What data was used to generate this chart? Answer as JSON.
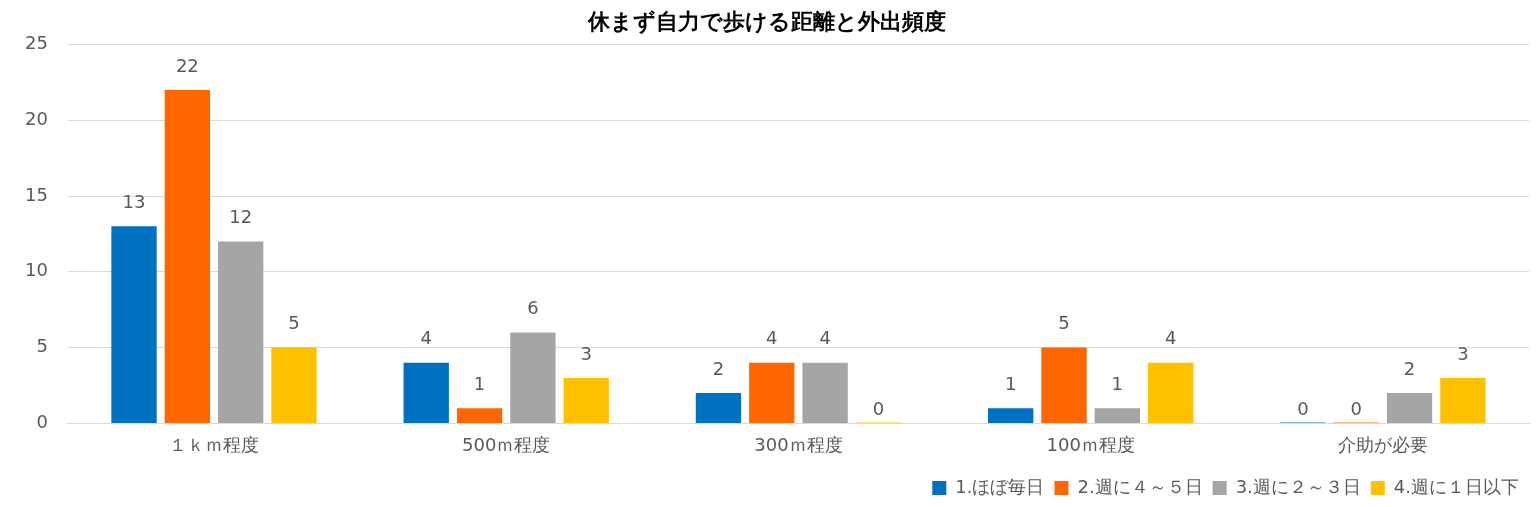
{
  "chart_data": {
    "type": "bar",
    "title": "休まず自力で歩ける距離と外出頻度",
    "categories": [
      "１ｋｍ程度",
      "500ｍ程度",
      "300ｍ程度",
      "100ｍ程度",
      "介助が必要"
    ],
    "series": [
      {
        "name": "1.ほぼ毎日",
        "color": "#0070c0",
        "values": [
          13,
          4,
          2,
          1,
          0
        ]
      },
      {
        "name": "2.週に４～５日",
        "color": "#ff6600",
        "values": [
          22,
          1,
          4,
          5,
          0
        ]
      },
      {
        "name": "3.週に２～３日",
        "color": "#a5a5a5",
        "values": [
          12,
          6,
          4,
          1,
          2
        ]
      },
      {
        "name": "4.週に１日以下",
        "color": "#ffc000",
        "values": [
          5,
          3,
          0,
          4,
          3
        ]
      }
    ],
    "ylim": [
      0,
      25
    ],
    "yticks": [
      0,
      5,
      10,
      15,
      20,
      25
    ],
    "grid": "y",
    "legend": "bottom right",
    "data_labels": true
  }
}
